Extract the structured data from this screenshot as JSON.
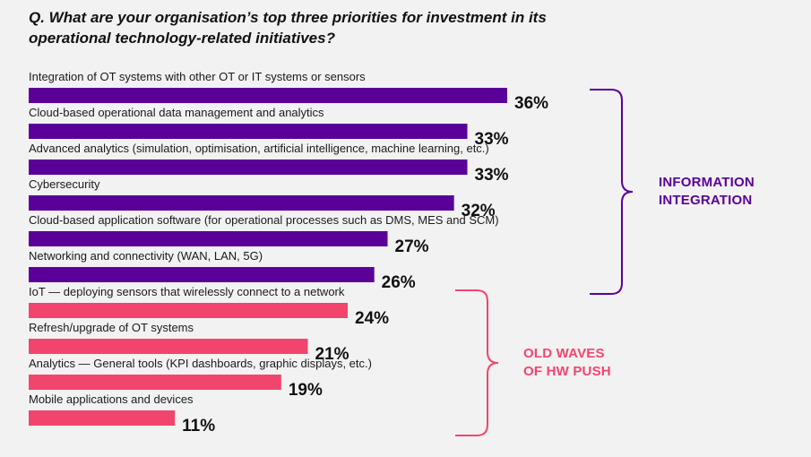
{
  "question": "Q. What are your organisation’s top three priorities for investment in its operational technology-related initiatives?",
  "colors": {
    "purple": "#5a0099",
    "pink": "#f2456d",
    "background": "#f2f2f2"
  },
  "chart_data": {
    "type": "bar",
    "orientation": "horizontal",
    "title": "Q. What are your organisation’s top three priorities for investment in its operational technology-related initiatives?",
    "unit": "%",
    "xlim": [
      0,
      36
    ],
    "categories": [
      "Integration of OT systems with other OT or IT systems or sensors",
      "Cloud-based operational data management and analytics",
      "Advanced analytics (simulation, optimisation, artificial intelligence, machine learning, etc.)",
      "Cybersecurity",
      "Cloud-based application software (for operational processes such as DMS, MES and SCM)",
      "Networking and connectivity (WAN, LAN, 5G)",
      "IoT — deploying sensors that wirelessly connect to a network",
      "Refresh/upgrade of OT systems",
      "Analytics — General tools (KPI dashboards, graphic displays, etc.)",
      "Mobile applications and devices"
    ],
    "values": [
      36,
      33,
      33,
      32,
      27,
      26,
      24,
      21,
      19,
      11
    ],
    "value_labels": [
      "36%",
      "33%",
      "33%",
      "32%",
      "27%",
      "26%",
      "24%",
      "21%",
      "19%",
      "11%"
    ],
    "groups": [
      {
        "name": "INFORMATION INTEGRATION",
        "lines": [
          "INFORMATION",
          "INTEGRATION"
        ],
        "color": "#5a0099",
        "start": 0,
        "end": 5
      },
      {
        "name": "OLD WAVES OF HW PUSH",
        "lines": [
          "OLD WAVES",
          "OF HW PUSH"
        ],
        "color": "#f2456d",
        "start": 6,
        "end": 9
      }
    ]
  }
}
